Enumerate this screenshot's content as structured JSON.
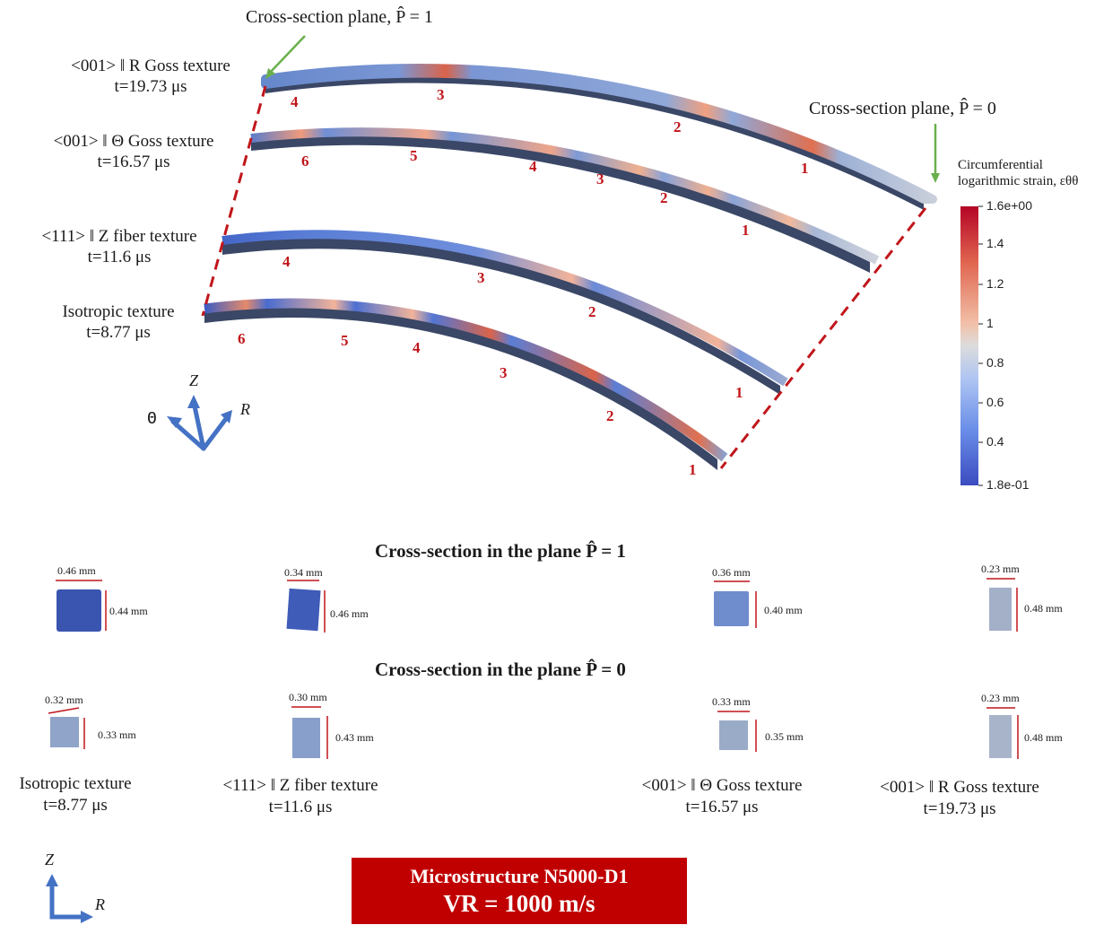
{
  "callouts": {
    "p1": "Cross-section plane, P̂ = 1",
    "p0": "Cross-section plane, P̂ = 0"
  },
  "beams": [
    {
      "title": "<001> ‖ R Goss texture",
      "time": "t=19.73 μs"
    },
    {
      "title": "<001> ‖ Θ Goss texture",
      "time": "t=16.57 μs"
    },
    {
      "title": "<111> ‖ Z fiber texture",
      "time": "t=11.6 μs"
    },
    {
      "title": "Isotropic texture",
      "time": "t=8.77 μs"
    }
  ],
  "neck_numbers": {
    "beam1": [
      "4",
      "3",
      "2",
      "1"
    ],
    "beam2": [
      "6",
      "5",
      "4",
      "3",
      "2",
      "1"
    ],
    "beam3": [
      "4",
      "3",
      "2",
      "1"
    ],
    "beam4": [
      "6",
      "5",
      "4",
      "3",
      "2",
      "1"
    ]
  },
  "colorbar": {
    "title_line1": "Circumferential",
    "title_line2": "logarithmic strain, εθθ",
    "ticks": [
      "1.6e+00",
      "1.4",
      "1.2",
      "1",
      "0.8",
      "0.6",
      "0.4",
      "1.8e-01"
    ],
    "colors": {
      "high": "#b40426",
      "mid": "#dddddd",
      "low": "#3b4cc0"
    }
  },
  "axes_3d": {
    "z": "Z",
    "theta": "Θ",
    "r": "R"
  },
  "cross_section": {
    "heading_p1": "Cross-section in the plane P̂ = 1",
    "heading_p0": "Cross-section in the plane P̂ = 0",
    "p1": [
      {
        "w": "0.46 mm",
        "h": "0.44 mm",
        "color": "#3a55b0"
      },
      {
        "w": "0.34 mm",
        "h": "0.46 mm",
        "color": "#3f5cb8"
      },
      {
        "w": "0.36 mm",
        "h": "0.40 mm",
        "color": "#6f8ccc"
      },
      {
        "w": "0.23 mm",
        "h": "0.48 mm",
        "color": "#a4b0c8"
      }
    ],
    "p0": [
      {
        "w": "0.32 mm",
        "h": "0.33 mm",
        "color": "#8fa4c8"
      },
      {
        "w": "0.30 mm",
        "h": "0.43 mm",
        "color": "#889fcb"
      },
      {
        "w": "0.33 mm",
        "h": "0.35 mm",
        "color": "#9aabc8"
      },
      {
        "w": "0.23 mm",
        "h": "0.48 mm",
        "color": "#a8b4c9"
      }
    ],
    "labels": [
      {
        "title": "Isotropic texture",
        "time": "t=8.77 μs"
      },
      {
        "title": "<111> ‖ Z fiber texture",
        "time": "t=11.6 μs"
      },
      {
        "title": "<001> ‖ Θ Goss texture",
        "time": "t=16.57 μs"
      },
      {
        "title": "<001> ‖ R Goss texture",
        "time": "t=19.73 μs"
      }
    ]
  },
  "axes_2d": {
    "z": "Z",
    "r": "R"
  },
  "badge": {
    "line1": "Microstructure N5000-D1",
    "line2": "VR = 1000 m/s"
  }
}
